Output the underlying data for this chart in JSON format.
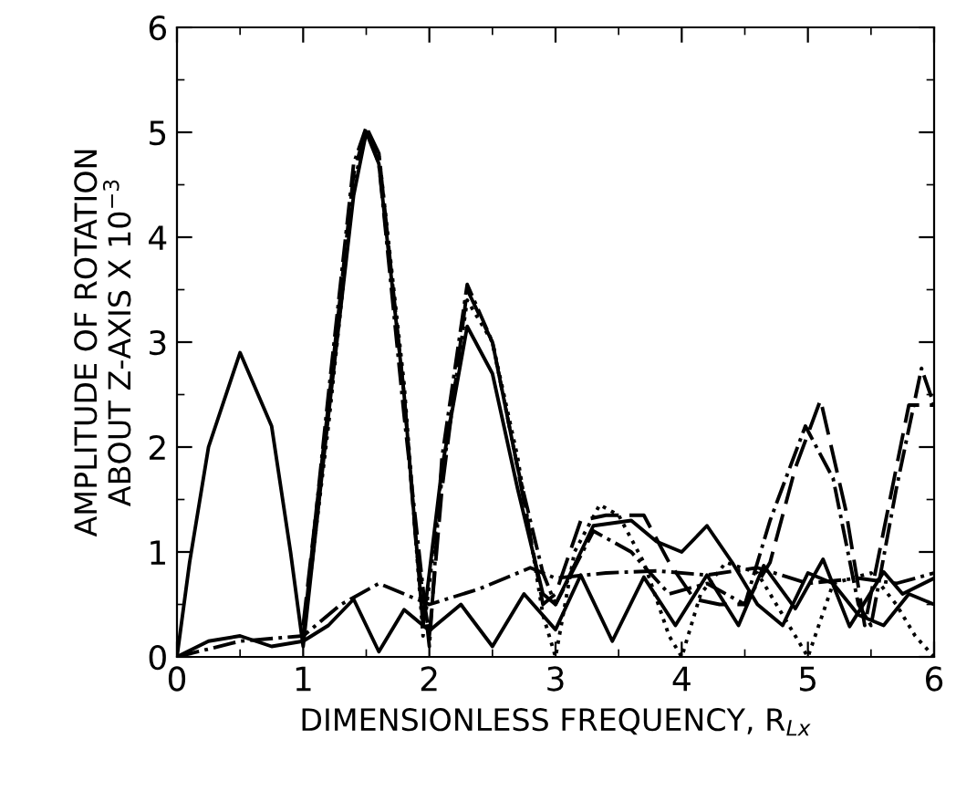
{
  "chart_data": {
    "type": "line",
    "xlabel": "DIMENSIONLESS FREQUENCY, R$_{Lx}$",
    "ylabel": "AMPLITUDE OF ROTATION\nABOUT Z-AXIS X 10$^{−3}$",
    "xlim": [
      0,
      6
    ],
    "ylim": [
      0,
      6
    ],
    "xticks": [
      0,
      1,
      2,
      3,
      4,
      5,
      6
    ],
    "yticks": [
      0,
      1,
      2,
      3,
      4,
      5,
      6
    ],
    "grid": false,
    "legend": false,
    "marker": "none",
    "series": [
      {
        "color": "#000000",
        "line_style": "solid",
        "x": [
          0,
          0.1,
          0.25,
          0.5,
          0.75,
          0.9,
          1.0,
          1.2,
          1.4,
          1.5,
          1.6,
          1.8,
          1.95,
          2.1,
          2.3,
          2.5,
          2.7,
          2.9,
          3.0,
          3.3,
          3.6,
          3.8,
          4.0,
          4.2,
          4.4,
          4.6,
          4.8,
          5.0,
          5.2,
          5.4,
          5.6,
          5.8,
          6.0
        ],
        "values": [
          0,
          0.9,
          2.0,
          2.9,
          2.2,
          1.0,
          0.1,
          2.3,
          4.4,
          5.0,
          4.7,
          2.5,
          0.3,
          1.8,
          3.15,
          2.7,
          1.6,
          0.6,
          0.5,
          1.25,
          1.3,
          1.1,
          1.0,
          1.25,
          0.9,
          0.5,
          0.3,
          0.8,
          0.7,
          0.4,
          0.3,
          0.6,
          0.5
        ]
      },
      {
        "color": "#000000",
        "line_style": "dashed",
        "x": [
          1.0,
          1.2,
          1.4,
          1.5,
          1.6,
          1.8,
          1.9,
          2.0,
          2.1,
          2.3,
          2.5,
          2.7,
          2.9,
          3.0,
          3.2,
          3.4,
          3.7,
          3.9,
          4.1,
          4.3,
          4.5,
          4.7,
          4.9,
          5.1,
          5.3,
          5.45,
          5.6,
          5.8,
          6.0
        ],
        "values": [
          0.3,
          2.4,
          4.6,
          5.05,
          4.8,
          2.5,
          1.0,
          0.2,
          1.6,
          3.5,
          3.0,
          1.8,
          0.5,
          0.6,
          1.3,
          1.35,
          1.35,
          0.9,
          0.55,
          0.5,
          0.5,
          0.9,
          1.8,
          2.45,
          1.4,
          0.3,
          1.2,
          2.4,
          2.4
        ]
      },
      {
        "color": "#000000",
        "line_style": "dotted",
        "x": [
          1.0,
          1.2,
          1.4,
          1.5,
          1.6,
          1.8,
          1.95,
          2.1,
          2.3,
          2.5,
          2.7,
          2.9,
          3.0,
          3.15,
          3.35,
          3.5,
          3.7,
          3.9,
          4.0,
          4.15,
          4.35,
          4.6,
          4.8,
          5.0,
          5.2,
          5.5,
          5.7,
          5.85,
          6.0
        ],
        "values": [
          0.2,
          2.2,
          4.5,
          5.0,
          4.8,
          2.6,
          0.2,
          1.7,
          3.4,
          3.0,
          1.9,
          0.4,
          0.0,
          1.0,
          1.45,
          1.35,
          0.9,
          0.2,
          0.0,
          0.6,
          0.9,
          0.8,
          0.4,
          0.0,
          0.7,
          0.8,
          0.5,
          0.2,
          0.0
        ]
      },
      {
        "color": "#000000",
        "line_style": "dashdot",
        "x": [
          1.0,
          1.2,
          1.4,
          1.5,
          1.6,
          1.8,
          2.0,
          2.1,
          2.3,
          2.5,
          2.7,
          2.9,
          3.0,
          3.3,
          3.6,
          3.9,
          4.2,
          4.5,
          4.7,
          4.98,
          5.2,
          5.4,
          5.5,
          5.7,
          5.9,
          6.0
        ],
        "values": [
          0.2,
          2.5,
          4.7,
          5.05,
          4.7,
          2.3,
          0.1,
          1.9,
          3.55,
          3.0,
          1.8,
          0.8,
          0.5,
          1.2,
          1.0,
          0.6,
          0.7,
          0.5,
          1.3,
          2.2,
          1.7,
          0.5,
          0.3,
          1.6,
          2.75,
          2.4
        ]
      },
      {
        "color": "#000000",
        "line_style": "solid",
        "x": [
          0,
          0.25,
          0.5,
          0.75,
          1.0,
          1.2,
          1.4,
          1.6,
          1.8,
          2.0,
          2.25,
          2.5,
          2.75,
          3.0,
          3.2,
          3.45,
          3.7,
          3.95,
          4.2,
          4.45,
          4.65,
          4.9,
          5.12,
          5.33,
          5.6,
          5.75,
          6.0
        ],
        "values": [
          0,
          0.15,
          0.2,
          0.1,
          0.15,
          0.3,
          0.55,
          0.05,
          0.45,
          0.25,
          0.5,
          0.1,
          0.6,
          0.26,
          0.78,
          0.15,
          0.76,
          0.3,
          0.78,
          0.3,
          0.87,
          0.46,
          0.93,
          0.29,
          0.81,
          0.6,
          0.75
        ]
      },
      {
        "color": "#000000",
        "line_style": "dashdot",
        "x": [
          0,
          0.5,
          1.0,
          1.3,
          1.6,
          2.0,
          2.4,
          2.8,
          3.0,
          3.4,
          3.8,
          4.2,
          4.6,
          5.0,
          5.4,
          5.7,
          6.0
        ],
        "values": [
          0,
          0.15,
          0.2,
          0.5,
          0.7,
          0.5,
          0.65,
          0.85,
          0.75,
          0.8,
          0.82,
          0.78,
          0.85,
          0.7,
          0.75,
          0.7,
          0.8
        ]
      }
    ]
  }
}
